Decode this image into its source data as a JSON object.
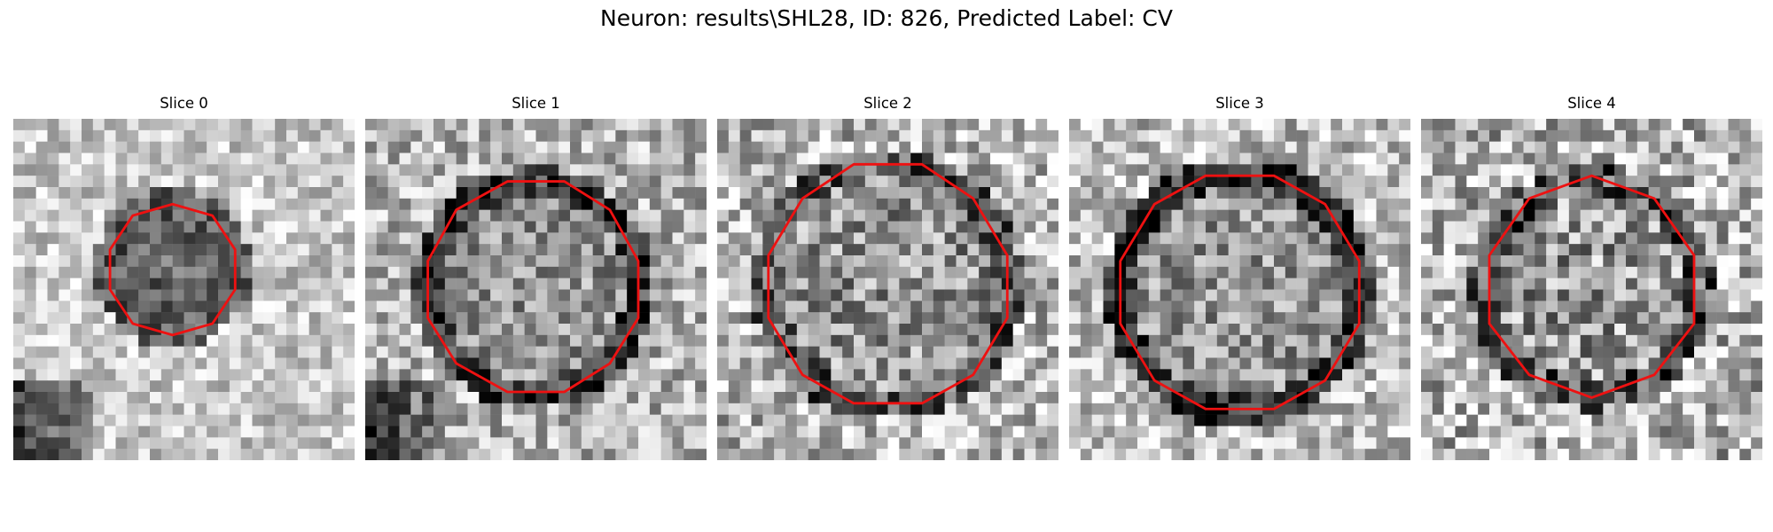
{
  "figure": {
    "title": "Neuron: results\\SHL28, ID: 826, Predicted Label: CV"
  },
  "panels": [
    {
      "title": "Slice 0",
      "contour_color": "#ee1111"
    },
    {
      "title": "Slice 1",
      "contour_color": "#ee1111"
    },
    {
      "title": "Slice 2",
      "contour_color": "#ee1111"
    },
    {
      "title": "Slice 3",
      "contour_color": "#ee1111"
    },
    {
      "title": "Slice 4",
      "contour_color": "#ee1111"
    }
  ]
}
